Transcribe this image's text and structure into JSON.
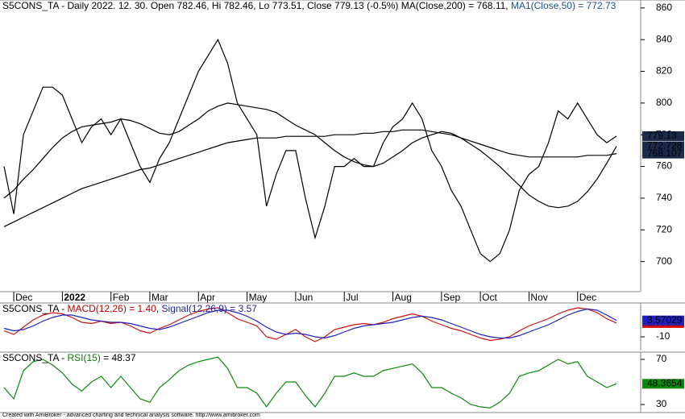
{
  "chart_data": [
    {
      "type": "line",
      "title_parts": [
        "S5CONS_TA - Daily 2022. 12. 30. Open 782.46, Hi 782.46, Lo 773.51, Close 779.13 (-0.5%)",
        " MA(Close,200) = 768.11,",
        " MA1(Close,50) = 772.73"
      ],
      "title_colors": [
        "#000000",
        "#000000",
        "#1f4e8c"
      ],
      "categories": [
        null,
        "Dec",
        null,
        null,
        null,
        null,
        "2022",
        null,
        null,
        null,
        null,
        "Feb",
        null,
        null,
        null,
        "Mar",
        null,
        null,
        null,
        null,
        "Apr",
        null,
        null,
        null,
        null,
        "May",
        null,
        null,
        null,
        null,
        "Jun",
        null,
        null,
        null,
        null,
        "Jul",
        null,
        null,
        null,
        null,
        "Aug",
        null,
        null,
        null,
        null,
        "Sep",
        null,
        null,
        null,
        "Oct",
        null,
        null,
        null,
        null,
        "Nov",
        null,
        null,
        null,
        null,
        "Dec",
        null,
        null,
        null,
        null
      ],
      "ylim": [
        681,
        865
      ],
      "yticks": [
        700,
        720,
        740,
        760,
        780,
        800,
        820,
        840,
        860
      ],
      "series": [
        {
          "color": "#000000",
          "last_label": "779.13",
          "values": [
            760,
            730,
            780,
            795,
            810,
            810,
            805,
            790,
            775,
            785,
            790,
            780,
            790,
            775,
            760,
            750,
            765,
            775,
            790,
            805,
            820,
            830,
            840,
            825,
            800,
            790,
            780,
            735,
            755,
            770,
            770,
            740,
            715,
            735,
            760,
            760,
            765,
            760,
            760,
            775,
            785,
            790,
            800,
            790,
            770,
            760,
            745,
            735,
            720,
            705,
            700,
            705,
            720,
            745,
            755,
            760,
            775,
            795,
            790,
            800,
            790,
            780,
            775,
            779.13
          ]
        },
        {
          "color": "#000000",
          "last_label": "772.728",
          "values": [
            740,
            745,
            752,
            758,
            765,
            772,
            778,
            782,
            785,
            786,
            787,
            788,
            790,
            789,
            787,
            784,
            781,
            780,
            782,
            786,
            790,
            795,
            798,
            800,
            799,
            798,
            797,
            796,
            794,
            790,
            786,
            783,
            780,
            775,
            770,
            766,
            763,
            761,
            760,
            762,
            766,
            770,
            775,
            778,
            780,
            782,
            781,
            778,
            774,
            770,
            765,
            760,
            754,
            748,
            742,
            738,
            735,
            734,
            735,
            738,
            744,
            752,
            762,
            772.73
          ]
        },
        {
          "color": "#000000",
          "last_label": "768.107",
          "values": [
            722,
            725,
            728,
            731,
            734,
            737,
            740,
            743,
            746,
            748,
            750,
            752,
            754,
            756,
            758,
            759,
            761,
            763,
            765,
            767,
            769,
            771,
            773,
            775,
            776,
            777,
            778,
            778,
            778,
            779,
            779,
            779,
            779,
            779,
            780,
            780,
            780,
            781,
            781,
            782,
            782,
            783,
            783,
            783,
            782,
            781,
            780,
            778,
            776,
            774,
            772,
            770,
            768,
            767,
            766,
            766,
            766,
            766,
            766,
            766,
            767,
            767,
            767,
            768.11
          ]
        }
      ]
    },
    {
      "type": "line",
      "title_parts": [
        "S5CONS_TA - ",
        "MACD(12,26) = 1.40",
        ", ",
        "Signal(12,26,9) = 3.57"
      ],
      "title_colors": [
        "#000000",
        "#c00000",
        "#000000",
        "#1f1fa0"
      ],
      "ylim": [
        -21.3,
        18
      ],
      "yticks": [
        -10
      ],
      "series": [
        {
          "color": "#d01010",
          "last_label": "1.39865",
          "values": [
            -5,
            -8,
            -2,
            4,
            8,
            10,
            9,
            6,
            2,
            1,
            3,
            1,
            2,
            -1,
            -5,
            -7,
            -3,
            0,
            4,
            8,
            11,
            13,
            14,
            10,
            5,
            2,
            -1,
            -10,
            -12,
            -8,
            -4,
            -10,
            -14,
            -10,
            -4,
            -2,
            0,
            1,
            0,
            2,
            5,
            7,
            9,
            7,
            3,
            0,
            -3,
            -5,
            -8,
            -11,
            -13,
            -12,
            -10,
            -5,
            -1,
            2,
            5,
            9,
            12,
            14,
            13,
            10,
            5,
            1.4
          ]
        },
        {
          "color": "#2020c0",
          "last_label": "3.57029",
          "values": [
            -3,
            -5,
            -4,
            -1,
            3,
            6,
            8,
            8,
            6,
            4,
            3,
            2,
            2,
            1,
            -1,
            -3,
            -4,
            -2,
            1,
            4,
            7,
            10,
            12,
            12,
            10,
            7,
            3,
            -2,
            -6,
            -8,
            -7,
            -8,
            -10,
            -11,
            -9,
            -6,
            -3,
            -1,
            0,
            1,
            2,
            4,
            6,
            7,
            6,
            4,
            1,
            -2,
            -5,
            -8,
            -10,
            -11,
            -11,
            -9,
            -6,
            -3,
            0,
            4,
            8,
            11,
            13,
            12,
            8,
            3.57
          ]
        }
      ]
    },
    {
      "type": "line",
      "title_parts": [
        "S5CONS_TA - ",
        "RSI(15)",
        " = 48.37"
      ],
      "title_colors": [
        "#000000",
        "#0a7a0a",
        "#000000"
      ],
      "ylim": [
        22.9,
        76.4
      ],
      "yticks": [
        30,
        70
      ],
      "series": [
        {
          "color": "#0a8a0a",
          "last_label": "48.3654",
          "values": [
            45,
            35,
            60,
            68,
            70,
            65,
            58,
            48,
            42,
            50,
            55,
            45,
            55,
            45,
            35,
            32,
            45,
            52,
            60,
            65,
            68,
            70,
            72,
            62,
            45,
            45,
            40,
            28,
            40,
            50,
            50,
            38,
            28,
            40,
            55,
            55,
            58,
            55,
            55,
            60,
            62,
            64,
            66,
            58,
            45,
            45,
            40,
            36,
            30,
            28,
            27,
            32,
            40,
            55,
            58,
            60,
            65,
            70,
            66,
            68,
            55,
            50,
            45,
            48.37
          ]
        }
      ]
    }
  ],
  "footer": "Created with AmiBroker - advanced charting and technical analysis software. http://www.amibroker.com"
}
